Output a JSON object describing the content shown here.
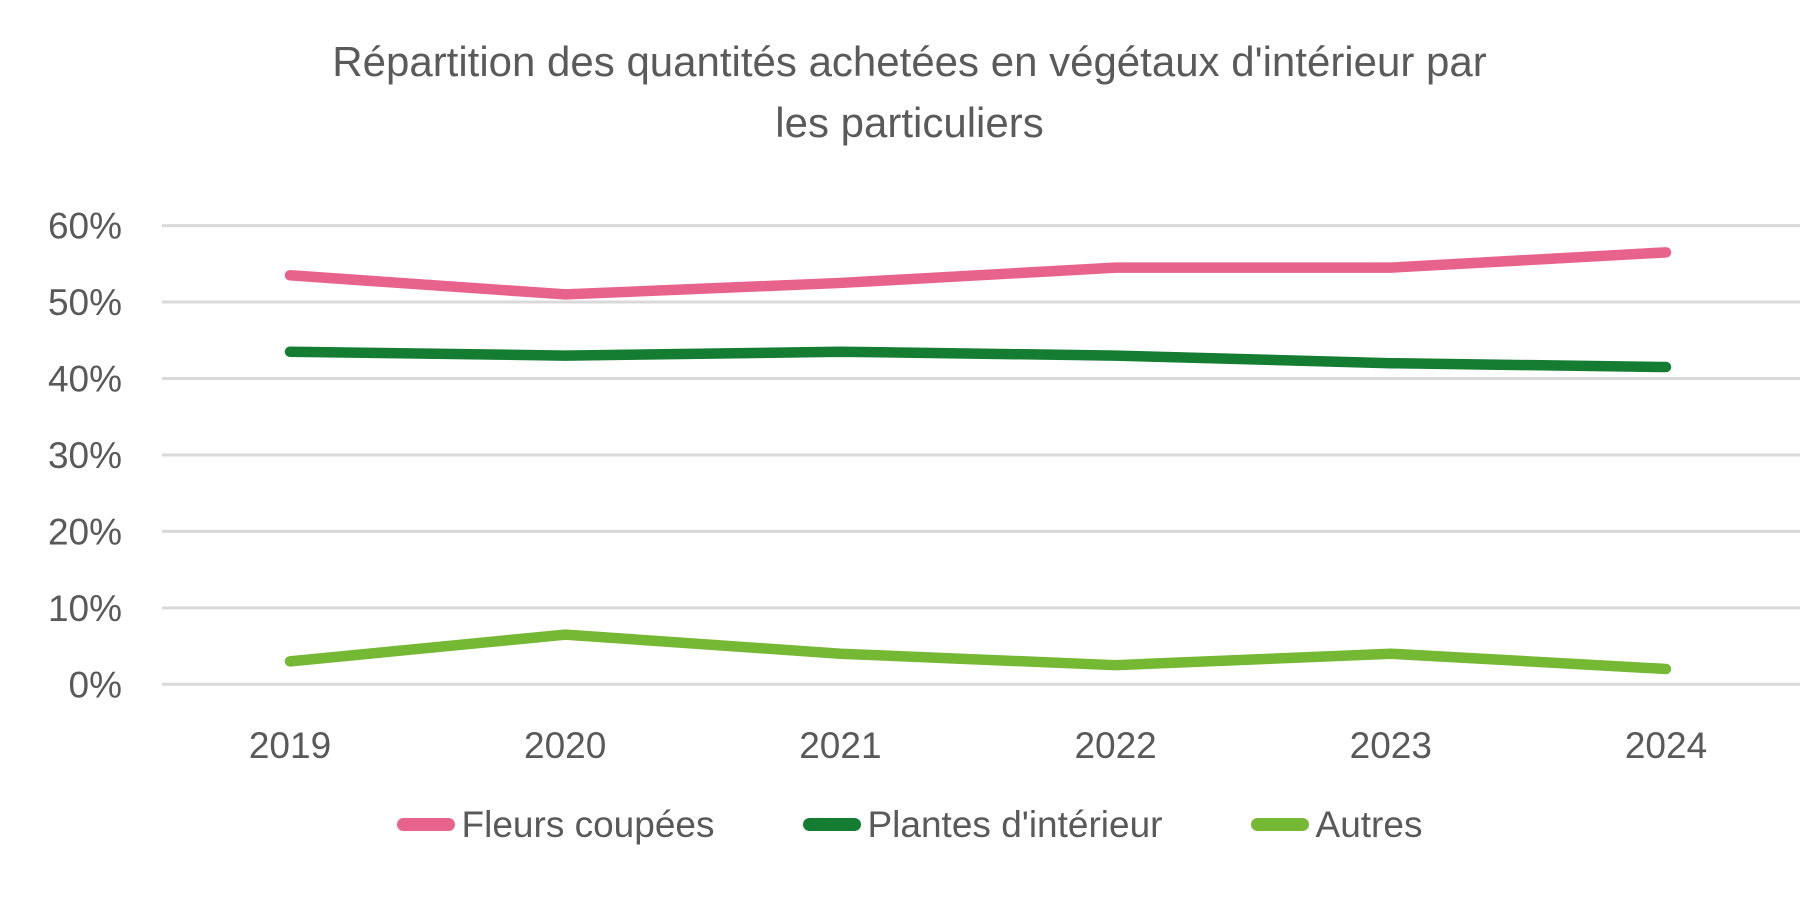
{
  "chart_data": {
    "type": "line",
    "title": "Répartition des quantités achetées en végétaux d'intérieur par les particuliers",
    "categories": [
      "2019",
      "2020",
      "2021",
      "2022",
      "2023",
      "2024"
    ],
    "series": [
      {
        "name": "Fleurs coupées",
        "color": "#e8638c",
        "values": [
          53.5,
          51,
          52.5,
          54.5,
          54.5,
          56.5
        ]
      },
      {
        "name": "Plantes d'intérieur",
        "color": "#157d31",
        "values": [
          43.5,
          43,
          43.5,
          43,
          42,
          41.5
        ]
      },
      {
        "name": "Autres",
        "color": "#75b834",
        "values": [
          3,
          6.5,
          4,
          2.5,
          4,
          2
        ]
      }
    ],
    "xlabel": "",
    "ylabel": "",
    "ylim": [
      0,
      60
    ],
    "ytick_step": 10,
    "yticks": [
      "0%",
      "10%",
      "20%",
      "30%",
      "40%",
      "50%",
      "60%"
    ],
    "grid": true,
    "legend_position": "bottom",
    "colors": {
      "title_text": "#5a5a5a",
      "axis_text": "#595959",
      "gridline": "#d9d9d9",
      "background": "#ffffff"
    }
  }
}
